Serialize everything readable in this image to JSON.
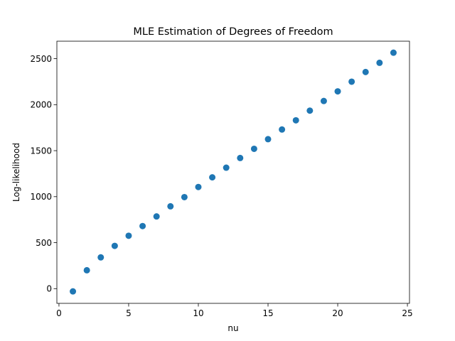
{
  "chart_data": {
    "type": "scatter",
    "title": "MLE Estimation of Degrees of Freedom",
    "xlabel": "nu",
    "ylabel": "Log-likelihood",
    "xlim": [
      -0.15,
      25.15
    ],
    "ylim": [
      -160,
      2690
    ],
    "xticks": [
      0,
      5,
      10,
      15,
      20,
      25
    ],
    "yticks": [
      0,
      500,
      1000,
      1500,
      2000,
      2500
    ],
    "grid": false,
    "legend": "none",
    "marker_color": "#1f77b4",
    "x": [
      1,
      2,
      3,
      4,
      5,
      6,
      7,
      8,
      9,
      10,
      11,
      12,
      13,
      14,
      15,
      16,
      17,
      18,
      19,
      20,
      21,
      22,
      23,
      24
    ],
    "y": [
      -30,
      200,
      340,
      465,
      575,
      680,
      785,
      895,
      995,
      1105,
      1210,
      1315,
      1420,
      1520,
      1625,
      1730,
      1830,
      1935,
      2040,
      2145,
      2250,
      2355,
      2455,
      2565
    ]
  }
}
